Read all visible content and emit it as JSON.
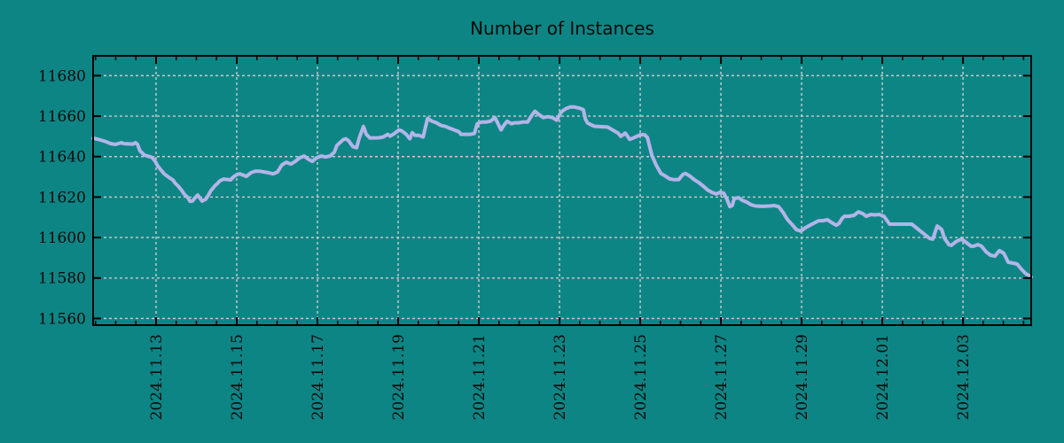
{
  "style": {
    "background_color": "#0e8585",
    "line_color": "#b3b4e8",
    "grid_color": "#cccccc",
    "axis_color": "#000000",
    "text_color": "#0a0a0a"
  },
  "chart_data": {
    "type": "line",
    "title": "Number of Instances",
    "xlabel": "",
    "ylabel": "",
    "legend_position": "none",
    "grid": true,
    "x_range_days": [
      -1.56,
      21.69
    ],
    "y_range": [
      11556.7,
      11689.8
    ],
    "x_minor_step_days": 0.5,
    "x_ticks": [
      {
        "t": 0,
        "label": "2024.11.13"
      },
      {
        "t": 2,
        "label": "2024.11.15"
      },
      {
        "t": 4,
        "label": "2024.11.17"
      },
      {
        "t": 6,
        "label": "2024.11.19"
      },
      {
        "t": 8,
        "label": "2024.11.21"
      },
      {
        "t": 10,
        "label": "2024.11.23"
      },
      {
        "t": 12,
        "label": "2024.11.25"
      },
      {
        "t": 14,
        "label": "2024.11.27"
      },
      {
        "t": 16,
        "label": "2024.11.29"
      },
      {
        "t": 18,
        "label": "2024.12.01"
      },
      {
        "t": 20,
        "label": "2024.12.03"
      }
    ],
    "y_ticks": [
      {
        "v": 11560,
        "label": "11560"
      },
      {
        "v": 11580,
        "label": "11580"
      },
      {
        "v": 11600,
        "label": "11600"
      },
      {
        "v": 11620,
        "label": "11620"
      },
      {
        "v": 11640,
        "label": "11640"
      },
      {
        "v": 11660,
        "label": "11660"
      },
      {
        "v": 11680,
        "label": "11680"
      }
    ],
    "series": [
      {
        "name": "instances",
        "points": [
          [
            -1.56,
            11649.1
          ],
          [
            -1.45,
            11648.6
          ],
          [
            -1.34,
            11648.0
          ],
          [
            -1.23,
            11647.3
          ],
          [
            -1.12,
            11646.4
          ],
          [
            -1.01,
            11646.0
          ],
          [
            -0.86,
            11646.9
          ],
          [
            -0.79,
            11646.4
          ],
          [
            -0.57,
            11646.2
          ],
          [
            -0.51,
            11646.9
          ],
          [
            -0.46,
            11646.0
          ],
          [
            -0.4,
            11642.9
          ],
          [
            -0.29,
            11640.7
          ],
          [
            -0.13,
            11639.8
          ],
          [
            -0.09,
            11639.4
          ],
          [
            -0.02,
            11637.6
          ],
          [
            0.04,
            11635.4
          ],
          [
            0.13,
            11633.2
          ],
          [
            0.2,
            11631.5
          ],
          [
            0.26,
            11630.6
          ],
          [
            0.35,
            11629.3
          ],
          [
            0.42,
            11628.4
          ],
          [
            0.48,
            11626.7
          ],
          [
            0.55,
            11625.4
          ],
          [
            0.64,
            11623.2
          ],
          [
            0.7,
            11621.4
          ],
          [
            0.79,
            11619.7
          ],
          [
            0.84,
            11617.9
          ],
          [
            0.9,
            11618.0
          ],
          [
            0.97,
            11619.7
          ],
          [
            1.03,
            11621.0
          ],
          [
            1.08,
            11619.7
          ],
          [
            1.14,
            11618.0
          ],
          [
            1.23,
            11618.9
          ],
          [
            1.3,
            11621.0
          ],
          [
            1.36,
            11623.2
          ],
          [
            1.45,
            11625.4
          ],
          [
            1.52,
            11626.7
          ],
          [
            1.58,
            11628.0
          ],
          [
            1.67,
            11628.9
          ],
          [
            1.85,
            11628.5
          ],
          [
            1.91,
            11629.8
          ],
          [
            2.0,
            11631.1
          ],
          [
            2.07,
            11631.5
          ],
          [
            2.13,
            11631.1
          ],
          [
            2.24,
            11630.2
          ],
          [
            2.35,
            11632.0
          ],
          [
            2.46,
            11632.8
          ],
          [
            2.57,
            11632.8
          ],
          [
            2.68,
            11632.4
          ],
          [
            2.79,
            11632.0
          ],
          [
            2.9,
            11631.5
          ],
          [
            3.01,
            11632.4
          ],
          [
            3.12,
            11635.9
          ],
          [
            3.23,
            11637.2
          ],
          [
            3.34,
            11636.3
          ],
          [
            3.45,
            11637.6
          ],
          [
            3.56,
            11639.4
          ],
          [
            3.67,
            11640.3
          ],
          [
            3.76,
            11638.9
          ],
          [
            3.87,
            11637.6
          ],
          [
            3.98,
            11639.4
          ],
          [
            4.09,
            11640.3
          ],
          [
            4.2,
            11639.8
          ],
          [
            4.31,
            11640.3
          ],
          [
            4.42,
            11642.2
          ],
          [
            4.48,
            11645.5
          ],
          [
            4.64,
            11648.4
          ],
          [
            4.7,
            11648.8
          ],
          [
            4.77,
            11647.9
          ],
          [
            4.88,
            11644.9
          ],
          [
            4.97,
            11644.4
          ],
          [
            5.03,
            11648.8
          ],
          [
            5.14,
            11654.9
          ],
          [
            5.21,
            11651.0
          ],
          [
            5.3,
            11649.2
          ],
          [
            5.52,
            11649.3
          ],
          [
            5.63,
            11649.7
          ],
          [
            5.74,
            11651.0
          ],
          [
            5.8,
            11650.1
          ],
          [
            5.91,
            11651.4
          ],
          [
            6.02,
            11653.2
          ],
          [
            6.09,
            11652.7
          ],
          [
            6.2,
            11651.0
          ],
          [
            6.29,
            11648.8
          ],
          [
            6.35,
            11651.8
          ],
          [
            6.42,
            11650.5
          ],
          [
            6.51,
            11650.5
          ],
          [
            6.62,
            11649.7
          ],
          [
            6.73,
            11658.9
          ],
          [
            6.84,
            11657.5
          ],
          [
            6.95,
            11656.7
          ],
          [
            7.06,
            11655.4
          ],
          [
            7.17,
            11654.9
          ],
          [
            7.28,
            11654.0
          ],
          [
            7.39,
            11653.2
          ],
          [
            7.5,
            11652.3
          ],
          [
            7.56,
            11651.0
          ],
          [
            7.78,
            11651.0
          ],
          [
            7.89,
            11651.4
          ],
          [
            7.96,
            11656.2
          ],
          [
            8.07,
            11657.1
          ],
          [
            8.18,
            11657.1
          ],
          [
            8.29,
            11657.5
          ],
          [
            8.4,
            11659.3
          ],
          [
            8.51,
            11654.9
          ],
          [
            8.55,
            11653.2
          ],
          [
            8.62,
            11655.4
          ],
          [
            8.7,
            11657.5
          ],
          [
            8.81,
            11656.2
          ],
          [
            8.88,
            11656.7
          ],
          [
            8.99,
            11656.7
          ],
          [
            9.1,
            11657.1
          ],
          [
            9.21,
            11657.1
          ],
          [
            9.32,
            11660.6
          ],
          [
            9.39,
            11662.4
          ],
          [
            9.5,
            11660.6
          ],
          [
            9.6,
            11659.3
          ],
          [
            9.71,
            11659.7
          ],
          [
            9.82,
            11659.3
          ],
          [
            9.93,
            11658.0
          ],
          [
            10.04,
            11662.0
          ],
          [
            10.15,
            11663.6
          ],
          [
            10.26,
            11664.5
          ],
          [
            10.37,
            11664.5
          ],
          [
            10.48,
            11664.0
          ],
          [
            10.59,
            11663.2
          ],
          [
            10.64,
            11658.5
          ],
          [
            10.7,
            11656.5
          ],
          [
            10.86,
            11655.0
          ],
          [
            11.19,
            11654.6
          ],
          [
            11.45,
            11651.6
          ],
          [
            11.52,
            11650.0
          ],
          [
            11.63,
            11651.6
          ],
          [
            11.74,
            11648.5
          ],
          [
            11.85,
            11649.4
          ],
          [
            12.0,
            11650.8
          ],
          [
            12.11,
            11650.8
          ],
          [
            12.18,
            11649.4
          ],
          [
            12.29,
            11640.6
          ],
          [
            12.4,
            11635.6
          ],
          [
            12.51,
            11631.7
          ],
          [
            12.62,
            11630.4
          ],
          [
            12.73,
            11629.0
          ],
          [
            12.84,
            11628.6
          ],
          [
            12.95,
            11628.6
          ],
          [
            13.06,
            11631.2
          ],
          [
            13.12,
            11631.7
          ],
          [
            13.23,
            11630.4
          ],
          [
            13.34,
            11628.6
          ],
          [
            13.45,
            11627.2
          ],
          [
            13.56,
            11625.5
          ],
          [
            13.67,
            11623.5
          ],
          [
            13.78,
            11622.3
          ],
          [
            13.89,
            11621.5
          ],
          [
            13.98,
            11622.4
          ],
          [
            14.07,
            11621.9
          ],
          [
            14.15,
            11618.9
          ],
          [
            14.22,
            11615.3
          ],
          [
            14.28,
            11615.8
          ],
          [
            14.33,
            11619.3
          ],
          [
            14.44,
            11619.7
          ],
          [
            14.53,
            11618.4
          ],
          [
            14.64,
            11617.5
          ],
          [
            14.75,
            11616.2
          ],
          [
            14.86,
            11615.6
          ],
          [
            15.03,
            11615.4
          ],
          [
            15.21,
            11615.6
          ],
          [
            15.32,
            11615.8
          ],
          [
            15.43,
            11615.3
          ],
          [
            15.54,
            11612.5
          ],
          [
            15.65,
            11608.9
          ],
          [
            15.76,
            11606.5
          ],
          [
            15.87,
            11603.9
          ],
          [
            15.98,
            11603.2
          ],
          [
            16.09,
            11604.8
          ],
          [
            16.2,
            11606.0
          ],
          [
            16.31,
            11607.2
          ],
          [
            16.42,
            11608.3
          ],
          [
            16.53,
            11608.3
          ],
          [
            16.64,
            11608.8
          ],
          [
            16.75,
            11607.3
          ],
          [
            16.86,
            11606.1
          ],
          [
            16.93,
            11607.0
          ],
          [
            17.01,
            11609.6
          ],
          [
            17.06,
            11610.5
          ],
          [
            17.17,
            11610.5
          ],
          [
            17.3,
            11611.0
          ],
          [
            17.41,
            11612.7
          ],
          [
            17.52,
            11611.8
          ],
          [
            17.6,
            11610.5
          ],
          [
            17.71,
            11611.4
          ],
          [
            17.82,
            11611.2
          ],
          [
            17.93,
            11611.4
          ],
          [
            18.04,
            11610.5
          ],
          [
            18.18,
            11606.6
          ],
          [
            18.29,
            11606.6
          ],
          [
            18.4,
            11606.6
          ],
          [
            18.51,
            11606.6
          ],
          [
            18.62,
            11606.6
          ],
          [
            18.73,
            11606.6
          ],
          [
            18.84,
            11604.9
          ],
          [
            18.95,
            11603.1
          ],
          [
            19.06,
            11601.4
          ],
          [
            19.17,
            11599.6
          ],
          [
            19.25,
            11599.2
          ],
          [
            19.36,
            11605.7
          ],
          [
            19.47,
            11604.0
          ],
          [
            19.54,
            11599.6
          ],
          [
            19.65,
            11596.5
          ],
          [
            19.71,
            11596.1
          ],
          [
            19.82,
            11597.9
          ],
          [
            19.91,
            11598.8
          ],
          [
            19.98,
            11599.0
          ],
          [
            20.09,
            11597.4
          ],
          [
            20.2,
            11595.7
          ],
          [
            20.26,
            11595.7
          ],
          [
            20.37,
            11596.5
          ],
          [
            20.46,
            11595.7
          ],
          [
            20.57,
            11593.0
          ],
          [
            20.68,
            11591.3
          ],
          [
            20.79,
            11590.8
          ],
          [
            20.9,
            11593.5
          ],
          [
            21.01,
            11592.2
          ],
          [
            21.12,
            11587.8
          ],
          [
            21.23,
            11587.4
          ],
          [
            21.34,
            11586.9
          ],
          [
            21.45,
            11584.3
          ],
          [
            21.56,
            11582.1
          ],
          [
            21.69,
            11580.5
          ]
        ]
      }
    ]
  }
}
